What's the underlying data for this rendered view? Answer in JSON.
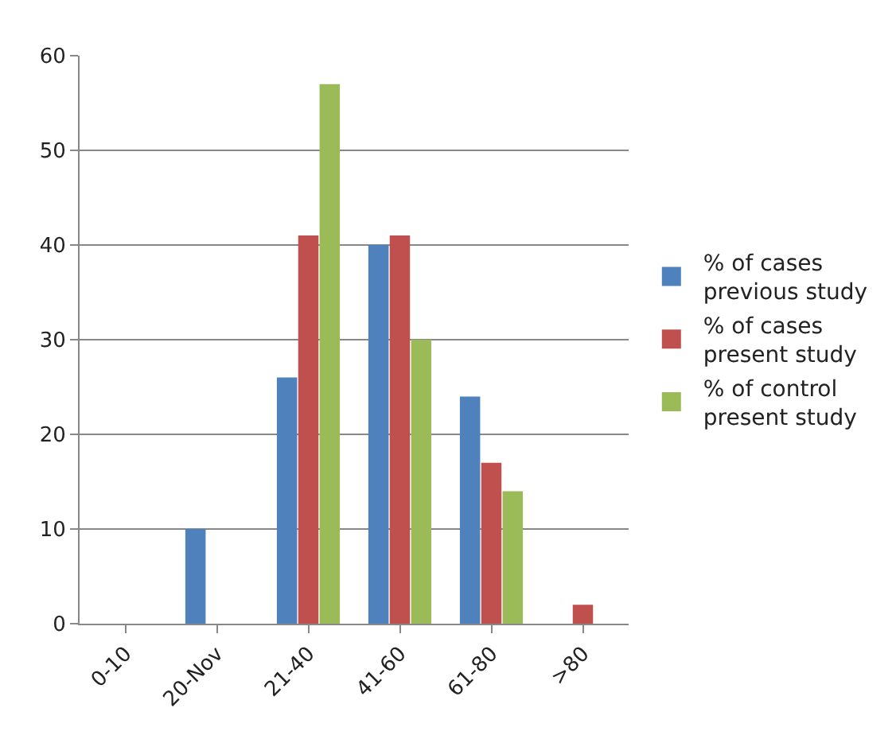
{
  "chart_data": {
    "type": "bar",
    "categories": [
      "0-10",
      "20-Nov",
      "21-40",
      "41-60",
      "61-80",
      ">80"
    ],
    "series": [
      {
        "name": "% of cases previous study",
        "color": "#4f81bd",
        "values": [
          0,
          10,
          26,
          40,
          24,
          0
        ]
      },
      {
        "name": "% of cases present study",
        "color": "#c0504d",
        "values": [
          0,
          0,
          41,
          41,
          17,
          2
        ]
      },
      {
        "name": "% of control present study",
        "color": "#9bbb59",
        "values": [
          0,
          0,
          57,
          30,
          14,
          0
        ]
      }
    ],
    "ylim": [
      0,
      60
    ],
    "yticks": [
      0,
      10,
      20,
      30,
      40,
      50,
      60
    ],
    "grid": "y",
    "legend": "right"
  }
}
